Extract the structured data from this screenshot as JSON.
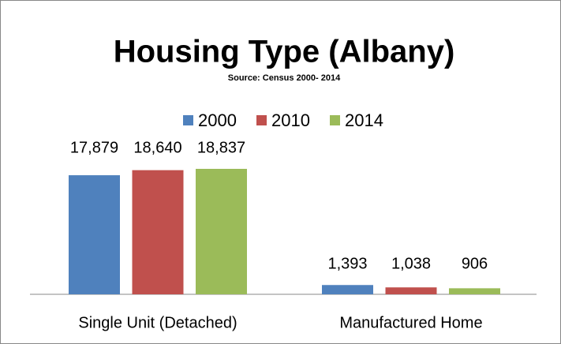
{
  "chart_data": {
    "type": "bar",
    "title": "Housing Type (Albany)",
    "subtitle": "Source:  Census 2000- 2014",
    "categories": [
      "Single Unit (Detached)",
      "Manufactured Home"
    ],
    "series": [
      {
        "name": "2000",
        "color": "#4f81bd",
        "values": [
          17879,
          1393
        ],
        "value_labels": [
          "17,879",
          "1,393"
        ]
      },
      {
        "name": "2010",
        "color": "#c0504d",
        "values": [
          18640,
          1038
        ],
        "value_labels": [
          "18,640",
          "1,038"
        ]
      },
      {
        "name": "2014",
        "color": "#9bbb59",
        "values": [
          18837,
          906
        ],
        "value_labels": [
          "18,837",
          "906"
        ]
      }
    ],
    "legend": "top"
  }
}
